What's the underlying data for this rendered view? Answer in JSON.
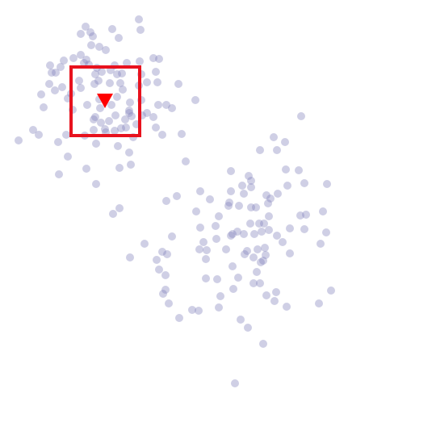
{
  "scene": {
    "background": "#ffffff",
    "dot_color": "#8080bb",
    "dot_opacity": 0.38,
    "target_box_color": "#e8121e",
    "marker_color": "#ff0000",
    "marker_shape": "triangle-down"
  },
  "dot_count": 208
}
